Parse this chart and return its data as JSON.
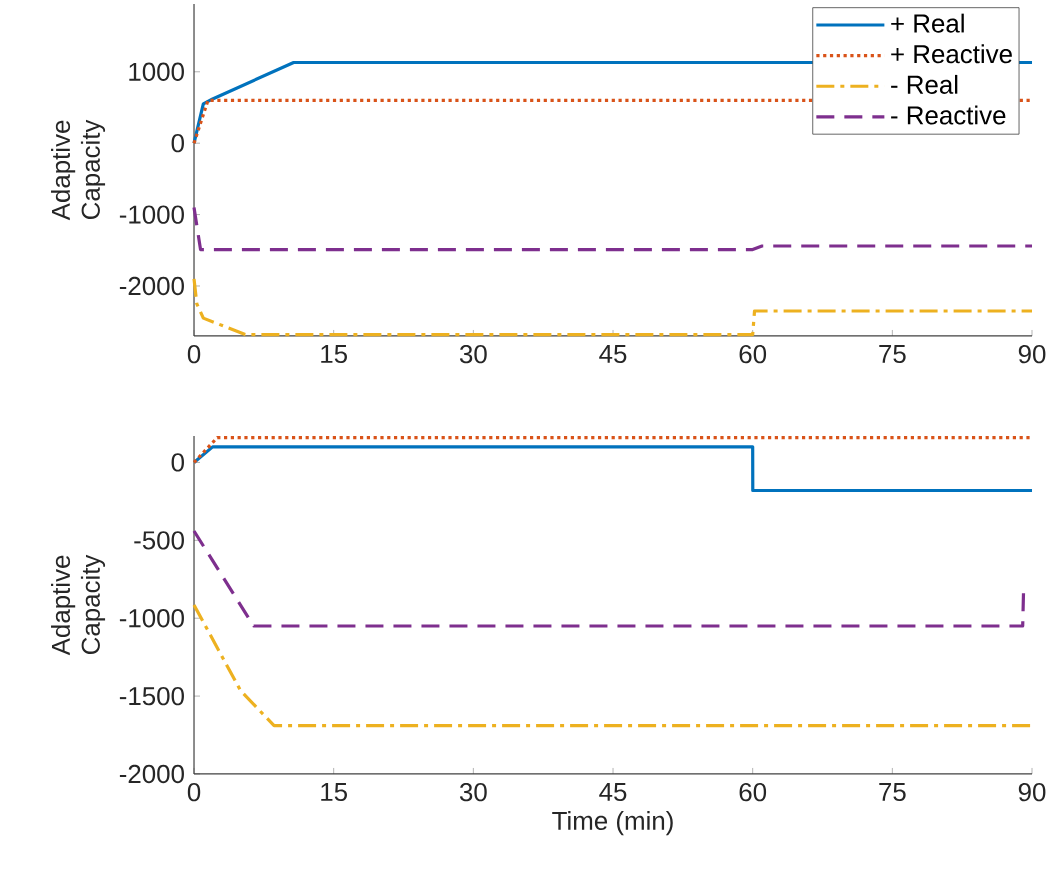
{
  "chart_data": [
    {
      "type": "line",
      "ylabel": "Adaptive Capacity",
      "xlim": [
        0,
        90
      ],
      "ylim": [
        -2700,
        1950
      ],
      "xticks": [
        0,
        15,
        30,
        45,
        60,
        75,
        90
      ],
      "yticks": [
        -2000,
        -1000,
        0,
        1000
      ],
      "legend": "top right",
      "grid": false,
      "series": [
        {
          "name": "+ Real",
          "color": "#0072bd",
          "line_style": "solid",
          "x": [
            0,
            1,
            2,
            10.7,
            90
          ],
          "values": [
            0,
            550,
            620,
            1130,
            1130
          ]
        },
        {
          "name": "+ Reactive",
          "color": "#d95319",
          "line_style": "dotted",
          "x": [
            0,
            1.5,
            90
          ],
          "values": [
            0,
            600,
            600
          ]
        },
        {
          "name": "- Real",
          "color": "#edb120",
          "line_style": "dashdot",
          "x": [
            0,
            0.3,
            1,
            5.5,
            60,
            60.2,
            90
          ],
          "values": [
            -1900,
            -2250,
            -2450,
            -2680,
            -2680,
            -2350,
            -2350
          ]
        },
        {
          "name": "- Reactive",
          "color": "#7e2f8e",
          "line_style": "dashed",
          "x": [
            0,
            0.7,
            60,
            61,
            90
          ],
          "values": [
            -900,
            -1490,
            -1490,
            -1440,
            -1440
          ]
        }
      ]
    },
    {
      "type": "line",
      "xlabel": "Time (min)",
      "ylabel": "Adaptive Capacity",
      "xlim": [
        0,
        90
      ],
      "ylim": [
        -2000,
        170
      ],
      "xticks": [
        0,
        15,
        30,
        45,
        60,
        75,
        90
      ],
      "yticks": [
        -2000,
        -1500,
        -1000,
        -500,
        0
      ],
      "grid": false,
      "series": [
        {
          "color": "#0072bd",
          "line_style": "solid",
          "x": [
            0,
            2,
            60,
            60.01,
            90
          ],
          "values": [
            0,
            100,
            100,
            -180,
            -180
          ]
        },
        {
          "color": "#d95319",
          "line_style": "dotted",
          "x": [
            0,
            2.5,
            90
          ],
          "values": [
            0,
            160,
            160
          ]
        },
        {
          "color": "#edb120",
          "line_style": "dashdot",
          "x": [
            0,
            5,
            8.6,
            90
          ],
          "values": [
            -915,
            -1465,
            -1690,
            -1690
          ]
        },
        {
          "color": "#7e2f8e",
          "line_style": "dashed",
          "x": [
            0,
            6.4,
            89,
            89.1,
            89.5
          ],
          "values": [
            -440,
            -1050,
            -1050,
            -800,
            -800
          ]
        }
      ]
    }
  ]
}
